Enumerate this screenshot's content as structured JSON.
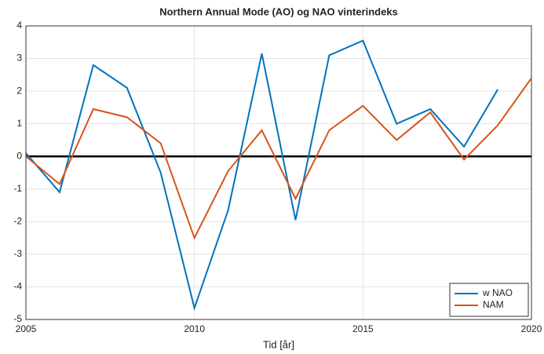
{
  "chart_data": {
    "type": "line",
    "title": "Northern Annual Mode (AO) og NAO vinterindeks",
    "xlabel": "Tid [år]",
    "x": [
      2005,
      2006,
      2007,
      2008,
      2009,
      2010,
      2011,
      2012,
      2013,
      2014,
      2015,
      2016,
      2017,
      2018,
      2019,
      2020
    ],
    "series": [
      {
        "name": "w NAO",
        "color": "#0072bd",
        "values": [
          0.1,
          -1.1,
          2.8,
          2.1,
          -0.5,
          -4.65,
          -1.65,
          3.15,
          -1.95,
          3.1,
          3.55,
          1.0,
          1.45,
          0.3,
          2.05,
          null
        ]
      },
      {
        "name": "NAM",
        "color": "#d95319",
        "values": [
          0,
          -0.85,
          1.45,
          1.2,
          0.4,
          -2.5,
          -0.45,
          0.8,
          -1.3,
          0.8,
          1.55,
          0.5,
          1.35,
          -0.1,
          0.95,
          2.4
        ]
      }
    ],
    "xlim": [
      2005,
      2020
    ],
    "xticks": [
      2005,
      2010,
      2015,
      2020
    ],
    "ylim": [
      -5,
      4
    ],
    "yticks": [
      -5,
      -4,
      -3,
      -2,
      -1,
      0,
      1,
      2,
      3,
      4
    ],
    "grid": true,
    "zero_line": true,
    "legend": "lower-right"
  }
}
